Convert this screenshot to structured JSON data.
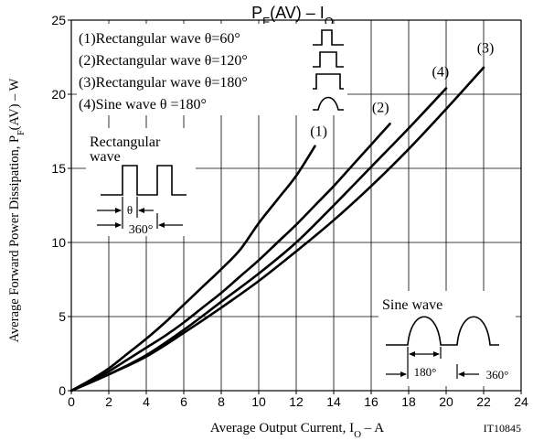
{
  "chart_data": {
    "type": "line",
    "title": "PF(AV) – IO",
    "xlabel": "Average Output Current, IO – A",
    "ylabel": "Average Forward Power Dissipation, PF(AV) – W",
    "xlim": [
      0,
      24
    ],
    "ylim": [
      0,
      25
    ],
    "x_ticks": [
      "0",
      "2",
      "4",
      "6",
      "8",
      "10",
      "12",
      "14",
      "16",
      "18",
      "20",
      "22",
      "24"
    ],
    "y_ticks": [
      "0",
      "5",
      "10",
      "15",
      "20",
      "25"
    ],
    "grid": true,
    "figure_id": "IT10845",
    "legend": [
      "(1)Rectangular wave θ=60°",
      "(2)Rectangular wave θ=120°",
      "(3)Rectangular wave θ=180°",
      "(4)Sine wave θ =180°"
    ],
    "series": [
      {
        "name": "(1)",
        "x": [
          0,
          1,
          2,
          3,
          4,
          5,
          6,
          7,
          8,
          9,
          10,
          11,
          12,
          13
        ],
        "y": [
          0,
          0.7,
          1.5,
          2.5,
          3.5,
          4.6,
          5.8,
          7.0,
          8.2,
          9.5,
          11.3,
          12.9,
          14.5,
          16.5
        ]
      },
      {
        "name": "(2)",
        "x": [
          0,
          1,
          2,
          3,
          4,
          5,
          6,
          7,
          8,
          9,
          10,
          11,
          12,
          13,
          14,
          15,
          16,
          17
        ],
        "y": [
          0,
          0.6,
          1.3,
          2.1,
          2.9,
          3.7,
          4.6,
          5.6,
          6.6,
          7.7,
          8.8,
          10.0,
          11.2,
          12.5,
          13.8,
          15.2,
          16.6,
          18.0
        ]
      },
      {
        "name": "(3)",
        "x": [
          0,
          2,
          4,
          6,
          8,
          10,
          12,
          14,
          16,
          18,
          20,
          22
        ],
        "y": [
          0,
          1.1,
          2.3,
          3.9,
          5.6,
          7.4,
          9.4,
          11.5,
          13.8,
          16.3,
          19.0,
          21.8
        ]
      },
      {
        "name": "(4)",
        "x": [
          0,
          2,
          4,
          6,
          8,
          10,
          12,
          14,
          16,
          18,
          20
        ],
        "y": [
          0,
          1.1,
          2.4,
          4.1,
          6.0,
          7.9,
          10.0,
          12.5,
          15.1,
          17.7,
          20.4
        ]
      }
    ],
    "curve_labels": [
      {
        "text": "(1)",
        "x": 13.2,
        "y": 17.2
      },
      {
        "text": "(2)",
        "x": 16.5,
        "y": 18.8
      },
      {
        "text": "(4)",
        "x": 19.7,
        "y": 21.2
      },
      {
        "text": "(3)",
        "x": 22.1,
        "y": 22.8
      }
    ],
    "insets": {
      "rectangular": {
        "title_line1": "Rectangular",
        "title_line2": "wave",
        "theta_label": "θ",
        "period_label": "360°"
      },
      "sine": {
        "title": "Sine wave",
        "conduction_label": "180°",
        "period_label": "360°"
      }
    }
  }
}
